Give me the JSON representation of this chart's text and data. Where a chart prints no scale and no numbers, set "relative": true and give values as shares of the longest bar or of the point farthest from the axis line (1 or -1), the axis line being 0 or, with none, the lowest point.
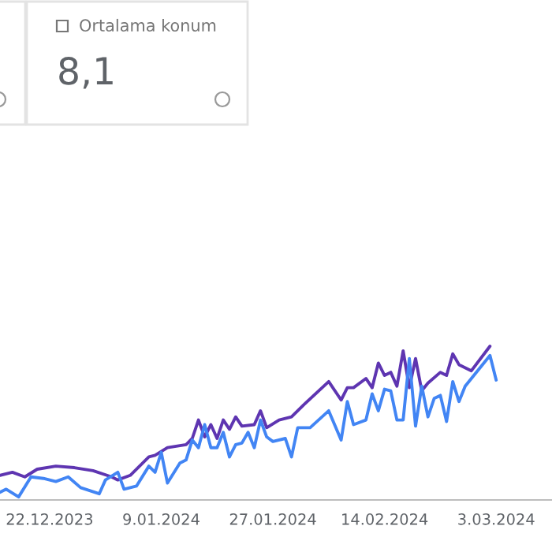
{
  "chart_data": [
    {
      "type": "other",
      "title": "Ortalama konum",
      "annotations": [
        "8,1"
      ]
    },
    {
      "type": "line",
      "relative": true,
      "marker": "none",
      "line_style": "solid",
      "xlim": [
        "2023-12-14",
        "2024-03-12"
      ],
      "xticks": [
        {
          "value": "2023-12-22",
          "label": "22.12.2023"
        },
        {
          "value": "2024-01-09",
          "label": "9.01.2024"
        },
        {
          "value": "2024-01-27",
          "label": "27.01.2024"
        },
        {
          "value": "2024-02-14",
          "label": "14.02.2024"
        },
        {
          "value": "2024-03-03",
          "label": "3.03.2024"
        }
      ],
      "series": [
        {
          "color": "#5e35b1",
          "x": [
            "2023-12-14",
            "2023-12-16",
            "2023-12-18",
            "2023-12-20",
            "2023-12-23",
            "2023-12-26",
            "2023-12-29",
            "2024-01-01",
            "2024-01-02",
            "2024-01-04",
            "2024-01-07",
            "2024-01-08",
            "2024-01-10",
            "2024-01-13",
            "2024-01-14",
            "2024-01-15",
            "2024-01-16",
            "2024-01-17",
            "2024-01-18",
            "2024-01-19",
            "2024-01-20",
            "2024-01-21",
            "2024-01-22",
            "2024-01-24",
            "2024-01-25",
            "2024-01-26",
            "2024-01-28",
            "2024-01-30",
            "2024-02-01",
            "2024-02-05",
            "2024-02-07",
            "2024-02-08",
            "2024-02-09",
            "2024-02-11",
            "2024-02-12",
            "2024-02-13",
            "2024-02-14",
            "2024-02-15",
            "2024-02-16",
            "2024-02-17",
            "2024-02-18",
            "2024-02-19",
            "2024-02-20",
            "2024-02-21",
            "2024-02-23",
            "2024-02-24",
            "2024-02-25",
            "2024-02-26",
            "2024-02-28",
            "2024-03-02"
          ],
          "values": [
            0.16,
            0.18,
            0.15,
            0.2,
            0.22,
            0.21,
            0.19,
            0.15,
            0.13,
            0.16,
            0.28,
            0.29,
            0.34,
            0.36,
            0.4,
            0.52,
            0.41,
            0.49,
            0.4,
            0.52,
            0.46,
            0.54,
            0.48,
            0.49,
            0.58,
            0.47,
            0.52,
            0.54,
            0.62,
            0.77,
            0.65,
            0.73,
            0.73,
            0.79,
            0.73,
            0.89,
            0.81,
            0.83,
            0.74,
            0.97,
            0.73,
            0.92,
            0.71,
            0.76,
            0.83,
            0.81,
            0.95,
            0.88,
            0.84,
            1.0
          ]
        },
        {
          "color": "#4285f4",
          "x": [
            "2023-12-14",
            "2023-12-15",
            "2023-12-17",
            "2023-12-19",
            "2023-12-21",
            "2023-12-23",
            "2023-12-25",
            "2023-12-27",
            "2023-12-30",
            "2023-12-31",
            "2024-01-02",
            "2024-01-03",
            "2024-01-05",
            "2024-01-07",
            "2024-01-08",
            "2024-01-09",
            "2024-01-10",
            "2024-01-12",
            "2024-01-13",
            "2024-01-14",
            "2024-01-15",
            "2024-01-16",
            "2024-01-17",
            "2024-01-18",
            "2024-01-19",
            "2024-01-20",
            "2024-01-21",
            "2024-01-22",
            "2024-01-23",
            "2024-01-24",
            "2024-01-25",
            "2024-01-26",
            "2024-01-27",
            "2024-01-29",
            "2024-01-30",
            "2024-01-31",
            "2024-02-02",
            "2024-02-05",
            "2024-02-07",
            "2024-02-08",
            "2024-02-09",
            "2024-02-11",
            "2024-02-12",
            "2024-02-13",
            "2024-02-14",
            "2024-02-15",
            "2024-02-16",
            "2024-02-17",
            "2024-02-18",
            "2024-02-19",
            "2024-02-20",
            "2024-02-21",
            "2024-02-22",
            "2024-02-23",
            "2024-02-24",
            "2024-02-25",
            "2024-02-26",
            "2024-02-27",
            "2024-03-02",
            "2024-03-03"
          ],
          "values": [
            0.05,
            0.07,
            0.02,
            0.15,
            0.14,
            0.12,
            0.15,
            0.08,
            0.04,
            0.13,
            0.18,
            0.07,
            0.09,
            0.22,
            0.18,
            0.31,
            0.11,
            0.24,
            0.26,
            0.39,
            0.34,
            0.49,
            0.34,
            0.34,
            0.44,
            0.28,
            0.36,
            0.37,
            0.44,
            0.34,
            0.52,
            0.41,
            0.38,
            0.4,
            0.28,
            0.47,
            0.47,
            0.58,
            0.39,
            0.64,
            0.49,
            0.52,
            0.69,
            0.58,
            0.72,
            0.71,
            0.52,
            0.52,
            0.92,
            0.48,
            0.74,
            0.54,
            0.66,
            0.68,
            0.51,
            0.77,
            0.64,
            0.74,
            0.94,
            0.78
          ]
        }
      ]
    }
  ]
}
